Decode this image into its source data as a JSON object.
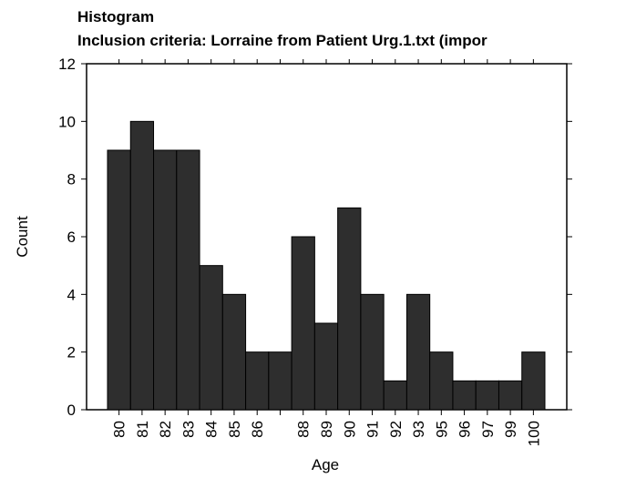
{
  "chart_data": {
    "type": "bar",
    "title": "Histogram",
    "subtitle": "Inclusion criteria: Lorraine from Patient Urg.1.txt (impor",
    "x_label": "Age",
    "y_label": "Count",
    "categories": [
      "80",
      "81",
      "82",
      "83",
      "84",
      "85",
      "86",
      null,
      "88",
      "89",
      "90",
      "91",
      "92",
      "93",
      "95",
      "96",
      "97",
      "99",
      "100"
    ],
    "values": [
      9,
      10,
      9,
      9,
      5,
      4,
      2,
      2,
      6,
      3,
      7,
      4,
      1,
      4,
      2,
      1,
      1,
      1,
      2
    ],
    "color": "#2e2e2e",
    "ylim": [
      0,
      12
    ],
    "yticks": [
      0,
      2,
      4,
      6,
      8,
      10,
      12
    ]
  }
}
